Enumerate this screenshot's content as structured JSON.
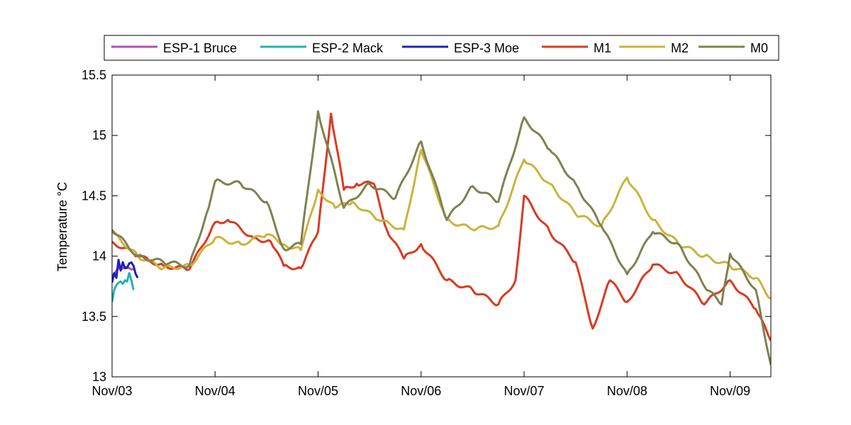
{
  "chart_data": {
    "type": "line",
    "ylabel": "Temperature °C",
    "xlabel": "",
    "ylim": [
      13,
      15.5
    ],
    "xlim": [
      "2010-11-03 00:00",
      "2010-11-09 09:30"
    ],
    "x_ticks": [
      "Nov/03",
      "Nov/04",
      "Nov/05",
      "Nov/06",
      "Nov/07",
      "Nov/08",
      "Nov/09"
    ],
    "y_ticks": [
      "13",
      "13.5",
      "14",
      "14.5",
      "15",
      "15.5"
    ],
    "grid": false,
    "legend_position": "top",
    "series": [
      {
        "name": "ESP-1 Bruce",
        "color": "#b04fb4",
        "x": [
          "2010-11-03 00:00",
          "2010-11-03 01:00",
          "2010-11-03 02:00",
          "2010-11-03 03:00",
          "2010-11-03 04:00",
          "2010-11-03 05:00"
        ],
        "y": [
          13.84,
          13.88,
          13.9,
          13.91,
          13.9,
          13.89
        ]
      },
      {
        "name": "ESP-2 Mack",
        "color": "#1fb5b0",
        "x": [
          "2010-11-03 00:00",
          "2010-11-03 00:30",
          "2010-11-03 01:00",
          "2010-11-03 01:30",
          "2010-11-03 02:00",
          "2010-11-03 02:30",
          "2010-11-03 03:00",
          "2010-11-03 03:30",
          "2010-11-03 04:00",
          "2010-11-03 04:30",
          "2010-11-03 05:00"
        ],
        "y": [
          13.62,
          13.72,
          13.76,
          13.78,
          13.79,
          13.77,
          13.8,
          13.79,
          13.86,
          13.8,
          13.72
        ]
      },
      {
        "name": "ESP-3 Moe",
        "color": "#2020c0",
        "x": [
          "2010-11-03 00:00",
          "2010-11-03 00:30",
          "2010-11-03 01:00",
          "2010-11-03 01:30",
          "2010-11-03 02:00",
          "2010-11-03 02:30",
          "2010-11-03 03:00",
          "2010-11-03 04:00",
          "2010-11-03 05:00",
          "2010-11-03 06:00"
        ],
        "y": [
          13.78,
          13.86,
          13.82,
          13.97,
          13.88,
          13.95,
          13.9,
          13.94,
          13.92,
          13.82
        ]
      },
      {
        "name": "M1",
        "color": "#d93a21",
        "x": [
          "2010-11-03 00:00",
          "2010-11-03 06:00",
          "2010-11-03 12:00",
          "2010-11-03 18:00",
          "2010-11-04 00:00",
          "2010-11-04 03:00",
          "2010-11-04 09:00",
          "2010-11-04 13:00",
          "2010-11-04 16:00",
          "2010-11-04 20:00",
          "2010-11-05 00:00",
          "2010-11-05 03:00",
          "2010-11-05 06:00",
          "2010-11-05 09:00",
          "2010-11-05 13:00",
          "2010-11-05 16:00",
          "2010-11-05 20:00",
          "2010-11-06 00:00",
          "2010-11-06 06:00",
          "2010-11-06 12:00",
          "2010-11-06 18:00",
          "2010-11-06 22:00",
          "2010-11-07 00:00",
          "2010-11-07 06:00",
          "2010-11-07 12:00",
          "2010-11-07 16:00",
          "2010-11-07 20:00",
          "2010-11-08 00:00",
          "2010-11-08 06:00",
          "2010-11-08 12:00",
          "2010-11-08 18:00",
          "2010-11-09 00:00",
          "2010-11-09 06:00",
          "2010-11-09 09:30"
        ],
        "y": [
          14.12,
          14.0,
          13.92,
          13.89,
          14.28,
          14.3,
          14.15,
          14.12,
          13.92,
          13.9,
          14.2,
          15.18,
          14.55,
          14.6,
          14.6,
          14.22,
          13.98,
          14.1,
          13.8,
          13.72,
          13.6,
          13.8,
          14.5,
          14.2,
          13.95,
          13.4,
          13.8,
          13.62,
          13.93,
          13.85,
          13.6,
          13.8,
          13.56,
          13.3
        ]
      },
      {
        "name": "M2",
        "color": "#cdb23a",
        "x": [
          "2010-11-03 00:00",
          "2010-11-03 06:00",
          "2010-11-03 12:00",
          "2010-11-03 18:00",
          "2010-11-04 00:00",
          "2010-11-04 06:00",
          "2010-11-04 12:00",
          "2010-11-04 16:00",
          "2010-11-04 20:00",
          "2010-11-05 00:00",
          "2010-11-05 04:00",
          "2010-11-05 08:00",
          "2010-11-05 14:00",
          "2010-11-05 20:00",
          "2010-11-06 00:00",
          "2010-11-06 06:00",
          "2010-11-06 12:00",
          "2010-11-06 18:00",
          "2010-11-07 00:00",
          "2010-11-07 06:00",
          "2010-11-07 12:00",
          "2010-11-07 18:00",
          "2010-11-08 00:00",
          "2010-11-08 06:00",
          "2010-11-08 12:00",
          "2010-11-08 18:00",
          "2010-11-09 00:00",
          "2010-11-09 06:00",
          "2010-11-09 09:30"
        ],
        "y": [
          14.2,
          14.0,
          13.9,
          13.92,
          14.15,
          14.1,
          14.18,
          14.1,
          14.05,
          14.55,
          14.4,
          14.45,
          14.3,
          14.22,
          14.88,
          14.3,
          14.22,
          14.25,
          14.8,
          14.6,
          14.35,
          14.25,
          14.65,
          14.3,
          14.1,
          14.0,
          13.92,
          13.82,
          13.65
        ]
      },
      {
        "name": "M0",
        "color": "#80814f",
        "x": [
          "2010-11-03 00:00",
          "2010-11-03 06:00",
          "2010-11-03 12:00",
          "2010-11-03 18:00",
          "2010-11-03 22:00",
          "2010-11-04 00:00",
          "2010-11-04 06:00",
          "2010-11-04 12:00",
          "2010-11-04 16:00",
          "2010-11-04 20:00",
          "2010-11-05 00:00",
          "2010-11-05 06:00",
          "2010-11-05 12:00",
          "2010-11-05 18:00",
          "2010-11-06 00:00",
          "2010-11-06 06:00",
          "2010-11-06 12:00",
          "2010-11-06 18:00",
          "2010-11-07 00:00",
          "2010-11-07 06:00",
          "2010-11-07 12:00",
          "2010-11-07 18:00",
          "2010-11-08 00:00",
          "2010-11-08 06:00",
          "2010-11-08 12:00",
          "2010-11-08 18:00",
          "2010-11-08 22:00",
          "2010-11-09 00:00",
          "2010-11-09 06:00",
          "2010-11-09 09:30"
        ],
        "y": [
          14.22,
          14.0,
          13.95,
          13.92,
          14.35,
          14.62,
          14.6,
          14.45,
          14.06,
          14.1,
          15.2,
          14.4,
          14.6,
          14.48,
          14.95,
          14.3,
          14.58,
          14.45,
          15.15,
          14.88,
          14.6,
          14.25,
          13.85,
          14.2,
          14.1,
          13.75,
          13.6,
          14.02,
          13.72,
          13.1
        ]
      }
    ]
  }
}
